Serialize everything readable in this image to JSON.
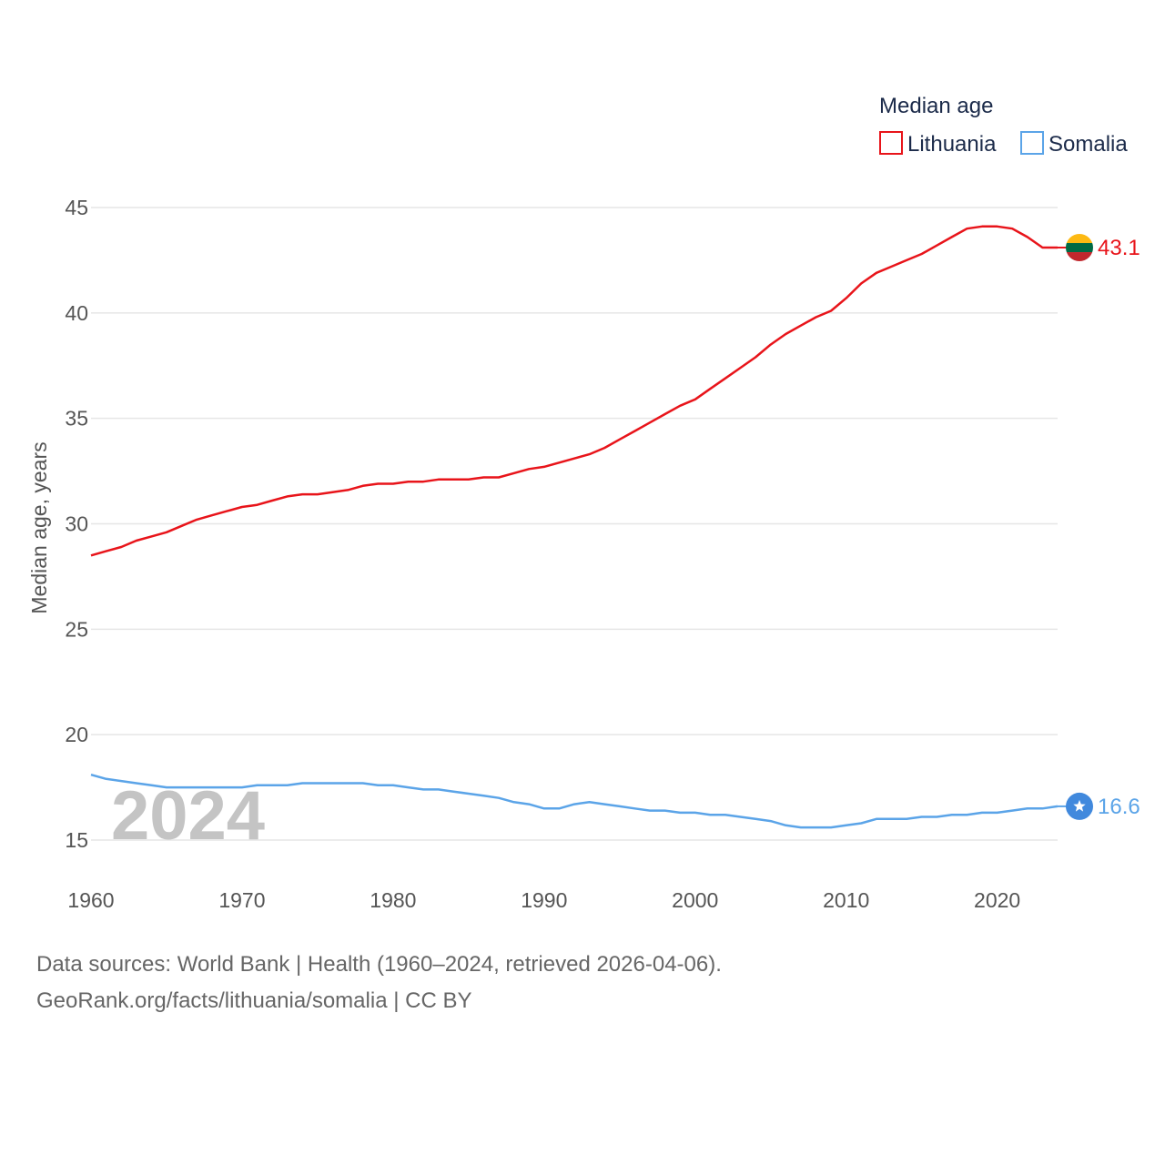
{
  "chart_data": {
    "type": "line",
    "title": "Median age",
    "ylabel": "Median age, years",
    "xlabel": "",
    "ylim": [
      13,
      46.5
    ],
    "xlim": [
      1960,
      2024
    ],
    "yticks": [
      15,
      20,
      25,
      30,
      35,
      40,
      45
    ],
    "xticks": [
      1960,
      1970,
      1980,
      1990,
      2000,
      2010,
      2020
    ],
    "grid": true,
    "legend_position": "top-right",
    "year_label": "2024",
    "x": [
      1960,
      1961,
      1962,
      1963,
      1964,
      1965,
      1966,
      1967,
      1968,
      1969,
      1970,
      1971,
      1972,
      1973,
      1974,
      1975,
      1976,
      1977,
      1978,
      1979,
      1980,
      1981,
      1982,
      1983,
      1984,
      1985,
      1986,
      1987,
      1988,
      1989,
      1990,
      1991,
      1992,
      1993,
      1994,
      1995,
      1996,
      1997,
      1998,
      1999,
      2000,
      2001,
      2002,
      2003,
      2004,
      2005,
      2006,
      2007,
      2008,
      2009,
      2010,
      2011,
      2012,
      2013,
      2014,
      2015,
      2016,
      2017,
      2018,
      2019,
      2020,
      2021,
      2022,
      2023,
      2024
    ],
    "series": [
      {
        "name": "Lithuania",
        "color": "#e8141a",
        "end_value": "43.1",
        "marker": "lithuania-flag",
        "values": [
          28.5,
          28.7,
          28.9,
          29.2,
          29.4,
          29.6,
          29.9,
          30.2,
          30.4,
          30.6,
          30.8,
          30.9,
          31.1,
          31.3,
          31.4,
          31.4,
          31.5,
          31.6,
          31.8,
          31.9,
          31.9,
          32.0,
          32.0,
          32.1,
          32.1,
          32.1,
          32.2,
          32.2,
          32.4,
          32.6,
          32.7,
          32.9,
          33.1,
          33.3,
          33.6,
          34.0,
          34.4,
          34.8,
          35.2,
          35.6,
          35.9,
          36.4,
          36.9,
          37.4,
          37.9,
          38.5,
          39.0,
          39.4,
          39.8,
          40.1,
          40.7,
          41.4,
          41.9,
          42.2,
          42.5,
          42.8,
          43.2,
          43.6,
          44.0,
          44.1,
          44.1,
          44.0,
          43.6,
          43.1,
          43.1
        ]
      },
      {
        "name": "Somalia",
        "color": "#5ba4e8",
        "end_value": "16.6",
        "marker": "somalia-flag",
        "values": [
          18.1,
          17.9,
          17.8,
          17.7,
          17.6,
          17.5,
          17.5,
          17.5,
          17.5,
          17.5,
          17.5,
          17.6,
          17.6,
          17.6,
          17.7,
          17.7,
          17.7,
          17.7,
          17.7,
          17.6,
          17.6,
          17.5,
          17.4,
          17.4,
          17.3,
          17.2,
          17.1,
          17.0,
          16.8,
          16.7,
          16.5,
          16.5,
          16.7,
          16.8,
          16.7,
          16.6,
          16.5,
          16.4,
          16.4,
          16.3,
          16.3,
          16.2,
          16.2,
          16.1,
          16.0,
          15.9,
          15.7,
          15.6,
          15.6,
          15.6,
          15.7,
          15.8,
          16.0,
          16.0,
          16.0,
          16.1,
          16.1,
          16.2,
          16.2,
          16.3,
          16.3,
          16.4,
          16.5,
          16.5,
          16.6
        ]
      }
    ]
  },
  "legend": {
    "title": "Median age",
    "items": [
      "Lithuania",
      "Somalia"
    ]
  },
  "footer": {
    "line1": "Data sources: World Bank | Health (1960–2024, retrieved 2026-04-06).",
    "line2": "GeoRank.org/facts/lithuania/somalia | CC BY"
  },
  "colors": {
    "grid": "#e6e6e6",
    "tick_text": "#555555",
    "lithuania_flag": [
      "#fdb913",
      "#006a44",
      "#c1272d"
    ],
    "somalia_flag": "#4189dd"
  }
}
